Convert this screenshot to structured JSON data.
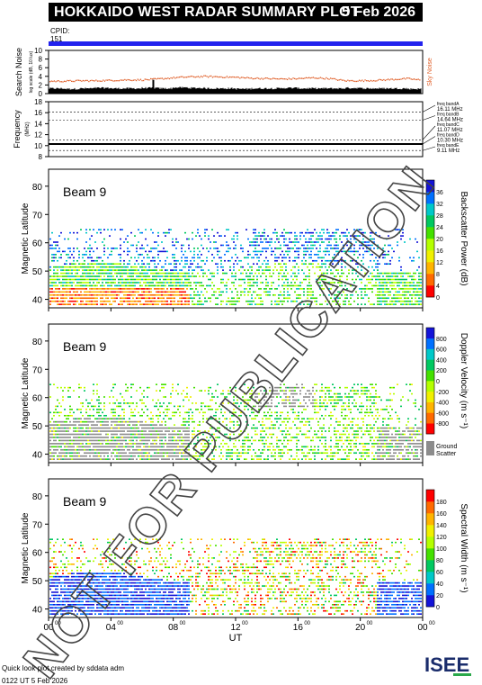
{
  "header": {
    "title": "HOKKAIDO WEST RADAR SUMMARY PLOT",
    "date": "5 Feb 2026"
  },
  "cpid": {
    "label": "CPID:",
    "value": "151"
  },
  "watermark": "NOT FOR PUBLICATION",
  "footer": {
    "credit": "Quick look plot created by sddata adm",
    "timestamp": "0122 UT 5 Feb 2026"
  },
  "logo_text": "ISEE",
  "colors": {
    "cpid_bar": "#2222ee",
    "noise_points": "#e0602a",
    "ground_scatter": "#8c8c8c"
  },
  "chart_data": [
    {
      "id": "noise",
      "type": "line",
      "ylabel": "Search Noise",
      "ylabel2": "log scale (dB, 10 lux)",
      "side_label": "Sky Noise",
      "ylim": [
        0,
        10
      ],
      "yticks": [
        0,
        2,
        4,
        6,
        8,
        10
      ],
      "x_hours": [
        0,
        1,
        2,
        3,
        4,
        5,
        6,
        7,
        8,
        9,
        10,
        11,
        12,
        13,
        14,
        15,
        16,
        17,
        18,
        19,
        20,
        21,
        22,
        23,
        24
      ],
      "sky_noise": [
        3.0,
        3.0,
        3.1,
        3.1,
        3.2,
        3.3,
        3.3,
        3.5,
        3.8,
        4.0,
        4.1,
        4.0,
        3.9,
        3.7,
        3.6,
        3.5,
        3.6,
        3.8,
        3.6,
        3.1,
        3.1,
        3.2,
        3.4,
        3.6,
        3.2
      ],
      "search_noise": [
        1.0,
        0.9,
        1.0,
        1.1,
        1.0,
        1.0,
        1.1,
        1.0,
        1.2,
        1.1,
        1.0,
        1.0,
        0.9,
        1.0,
        1.0,
        1.1,
        1.0,
        1.0,
        1.0,
        1.1,
        1.0,
        1.0,
        1.0,
        0.9,
        1.0
      ]
    },
    {
      "id": "frequency",
      "type": "line",
      "ylabel": "Frequency",
      "yunit": "(MHz)",
      "ylim": [
        8,
        18
      ],
      "yticks": [
        8,
        10,
        12,
        14,
        16,
        18
      ],
      "bands": [
        {
          "name": "freq bandA",
          "mhz": "16.11 MHz",
          "value": 16.11
        },
        {
          "name": "freq bandB",
          "mhz": "14.64 MHz",
          "value": 14.64
        },
        {
          "name": "freq bandC",
          "mhz": "11.07 MHz",
          "value": 11.07
        },
        {
          "name": "freq bandD",
          "mhz": "10.30 MHz",
          "value": 10.3
        },
        {
          "name": "freq bandE",
          "mhz": "9.11 MHz",
          "value": 9.11
        }
      ],
      "operating_frequency": 10.3
    },
    {
      "id": "power",
      "type": "heatmap",
      "beam": "Beam 9",
      "ylabel": "Magnetic Latitude",
      "ylim": [
        37,
        86
      ],
      "yticks": [
        40,
        50,
        60,
        70,
        80
      ],
      "colorbar_label": "Backscatter Power (dB)",
      "colorbar_ticks": [
        "0",
        "4",
        "8",
        "12",
        "16",
        "20",
        "24",
        "28",
        "32",
        "36"
      ],
      "colorbar_colors": [
        "#ff0000",
        "#ff6a00",
        "#ffb400",
        "#f0f000",
        "#b4ff00",
        "#44e000",
        "#00c860",
        "#00c8c8",
        "#0070ff",
        "#1414d8"
      ]
    },
    {
      "id": "velocity",
      "type": "heatmap",
      "beam": "Beam 9",
      "ylabel": "Magnetic Latitude",
      "ylim": [
        37,
        86
      ],
      "yticks": [
        40,
        50,
        60,
        70,
        80
      ],
      "colorbar_label": "Doppler Velocity (m s⁻¹)",
      "colorbar_ticks": [
        "-800",
        "-600",
        "-400",
        "-200",
        "0",
        "200",
        "400",
        "600",
        "800"
      ],
      "colorbar_colors": [
        "#ff0000",
        "#ff6a00",
        "#ffb400",
        "#f0f000",
        "#b4ff00",
        "#44e000",
        "#00c860",
        "#00c8c8",
        "#0070ff",
        "#1414d8"
      ],
      "ground_scatter_label": "Ground Scatter"
    },
    {
      "id": "width",
      "type": "heatmap",
      "beam": "Beam 9",
      "ylabel": "Magnetic Latitude",
      "ylim": [
        37,
        86
      ],
      "yticks": [
        40,
        50,
        60,
        70,
        80
      ],
      "xlabel": "UT",
      "xticks": [
        "00",
        "04",
        "08",
        "12",
        "16",
        "20",
        "00"
      ],
      "xtick_sup": "00",
      "colorbar_label": "Spectral Width (m s⁻¹)",
      "colorbar_ticks": [
        "0",
        "20",
        "40",
        "60",
        "80",
        "100",
        "120",
        "140",
        "160",
        "180"
      ],
      "colorbar_colors": [
        "#1414d8",
        "#0070ff",
        "#00c8c8",
        "#00c860",
        "#44e000",
        "#b4ff00",
        "#f0f000",
        "#ffb400",
        "#ff6a00",
        "#ff0000"
      ]
    }
  ]
}
